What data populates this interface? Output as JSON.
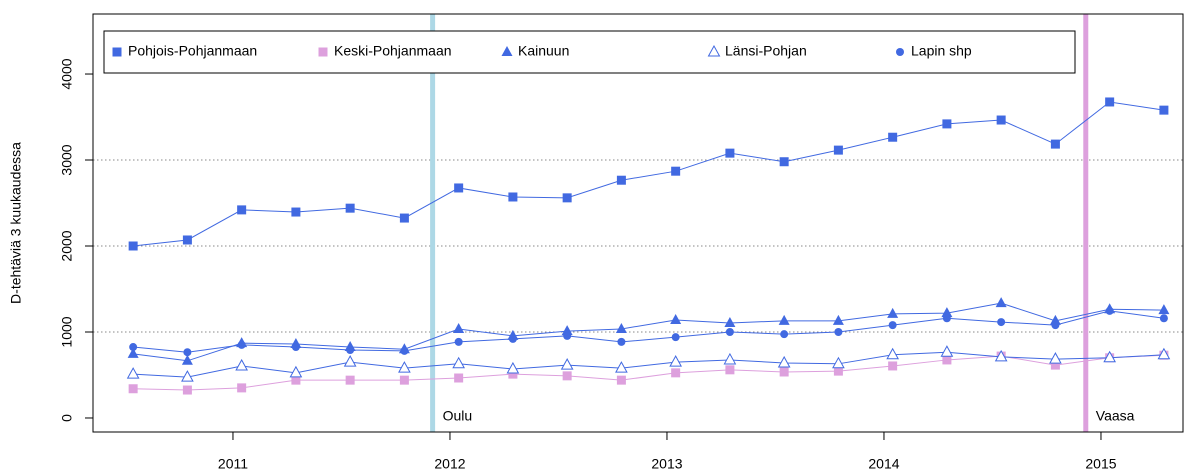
{
  "chart_data": {
    "type": "line",
    "y_label": "D-tehtäviä 3 kuukaudessa",
    "x": [
      2010.54,
      2010.79,
      2011.04,
      2011.29,
      2011.54,
      2011.79,
      2012.04,
      2012.29,
      2012.54,
      2012.79,
      2013.04,
      2013.29,
      2013.54,
      2013.79,
      2014.04,
      2014.29,
      2014.54,
      2014.79,
      2015.04,
      2015.29
    ],
    "xlim": [
      2010.355,
      2015.378
    ],
    "xticks": [
      2011,
      2012,
      2013,
      2014,
      2015
    ],
    "ylim": [
      -163,
      4698
    ],
    "yticks": [
      0,
      1000,
      2000,
      3000,
      4000
    ],
    "hlines": [
      1000,
      2000,
      3000
    ],
    "vlines": [
      {
        "x": 2011.92,
        "label": "Oulu",
        "color": "#add8e6"
      },
      {
        "x": 2014.93,
        "label": "Vaasa",
        "color": "#dda0dd"
      }
    ],
    "legend": "top",
    "series": [
      {
        "name": "Pohjois-Pohjanmaan",
        "color": "#4169e1",
        "marker": "square",
        "values": [
          2000,
          2070,
          2420,
          2395,
          2440,
          2325,
          2675,
          2570,
          2560,
          2765,
          2870,
          3080,
          2980,
          3115,
          3265,
          3420,
          3465,
          3185,
          3675,
          3580
        ]
      },
      {
        "name": "Keski-Pohjanmaan",
        "color": "#dda0dd",
        "marker": "square",
        "values": [
          340,
          325,
          350,
          440,
          440,
          440,
          465,
          510,
          490,
          440,
          525,
          560,
          535,
          545,
          605,
          675,
          720,
          615,
          700,
          730
        ]
      },
      {
        "name": "Kainuun",
        "color": "#4169e1",
        "marker": "triangle",
        "values": [
          745,
          665,
          870,
          860,
          825,
          800,
          1035,
          955,
          1010,
          1035,
          1140,
          1105,
          1130,
          1130,
          1210,
          1220,
          1335,
          1130,
          1265,
          1255
        ]
      },
      {
        "name": "Länsi-Pohjan",
        "color": "#4169e1",
        "marker": "open-triangle",
        "values": [
          510,
          475,
          605,
          525,
          650,
          580,
          630,
          570,
          615,
          580,
          650,
          675,
          640,
          630,
          735,
          765,
          710,
          685,
          700,
          735
        ]
      },
      {
        "name": "Lapin shp",
        "color": "#4169e1",
        "marker": "circle",
        "values": [
          825,
          765,
          850,
          825,
          790,
          780,
          885,
          920,
          955,
          885,
          940,
          1000,
          975,
          1000,
          1080,
          1160,
          1115,
          1080,
          1245,
          1160
        ]
      }
    ]
  }
}
